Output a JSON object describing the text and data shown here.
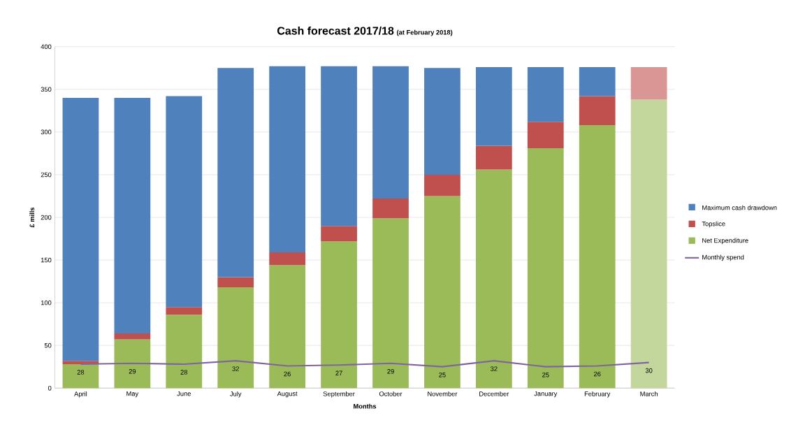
{
  "chart_data": {
    "type": "bar",
    "stacked": true,
    "title": "Cash forecast 2017/18",
    "subtitle": "(at February 2018)",
    "xlabel": "Months",
    "ylabel": "£ mills",
    "categories": [
      "April",
      "May",
      "June",
      "July",
      "August",
      "September",
      "October",
      "November",
      "December",
      "January",
      "February",
      "March"
    ],
    "ylim": [
      0,
      400
    ],
    "yticks": [
      0,
      50,
      100,
      150,
      200,
      250,
      300,
      350,
      400
    ],
    "grid": "y",
    "legend": "right",
    "series": [
      {
        "name": "Net Expenditure",
        "color": "#9bbb59",
        "colors": [
          "#9bbb59",
          "#9bbb59",
          "#9bbb59",
          "#9bbb59",
          "#9bbb59",
          "#9bbb59",
          "#9bbb59",
          "#9bbb59",
          "#9bbb59",
          "#9bbb59",
          "#9bbb59",
          "#c3d69b"
        ],
        "values": [
          28,
          57,
          86,
          118,
          144,
          172,
          199,
          225,
          256,
          281,
          308,
          338
        ]
      },
      {
        "name": "Topslice",
        "color": "#c0504d",
        "colors": [
          "#c0504d",
          "#c0504d",
          "#c0504d",
          "#c0504d",
          "#c0504d",
          "#c0504d",
          "#c0504d",
          "#c0504d",
          "#c0504d",
          "#c0504d",
          "#c0504d",
          "#d99694"
        ],
        "values": [
          4,
          7,
          9,
          12,
          15,
          18,
          23,
          25,
          28,
          31,
          34,
          38
        ]
      },
      {
        "name": "Maximum cash drawdown",
        "color": "#4f81bd",
        "values": [
          308,
          276,
          247,
          245,
          218,
          187,
          155,
          125,
          92,
          64,
          34,
          0
        ]
      },
      {
        "name": "Monthly spend",
        "type": "line",
        "color": "#8064a2",
        "values": [
          28,
          29,
          28,
          32,
          26,
          27,
          29,
          25,
          32,
          25,
          26,
          30
        ],
        "value_labels": [
          "28",
          "29",
          "28",
          "32",
          "26",
          "27",
          "29",
          "25",
          "32",
          "25",
          "26",
          "30"
        ]
      }
    ]
  }
}
